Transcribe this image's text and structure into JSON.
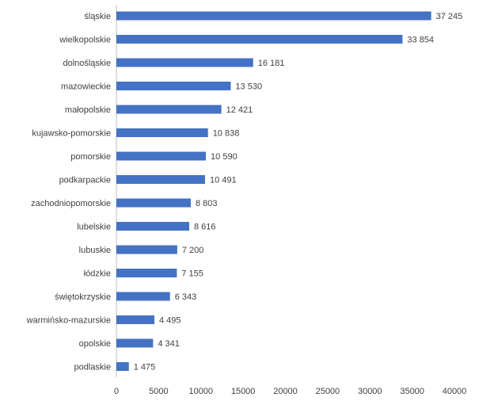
{
  "chart_data": {
    "type": "bar",
    "orientation": "horizontal",
    "title": "",
    "xlabel": "",
    "ylabel": "",
    "categories": [
      "śląskie",
      "wielkopolskie",
      "dolnośląskie",
      "mazowieckie",
      "małopolskie",
      "kujawsko-pomorskie",
      "pomorskie",
      "podkarpackie",
      "zachodniopomorskie",
      "lubelskie",
      "lubuskie",
      "łódzkie",
      "świętokrzyskie",
      "warmińsko-mazurskie",
      "opolskie",
      "podlaskie"
    ],
    "values": [
      37245,
      33854,
      16181,
      13530,
      12421,
      10838,
      10590,
      10491,
      8803,
      8616,
      7200,
      7155,
      6343,
      4495,
      4341,
      1475
    ],
    "value_labels": [
      "37 245",
      "33 854",
      "16 181",
      "13 530",
      "12 421",
      "10 838",
      "10 590",
      "10 491",
      "8 803",
      "8 616",
      "7 200",
      "7 155",
      "6 343",
      "4 495",
      "4 341",
      "1 475"
    ],
    "xlim": [
      0,
      40000
    ],
    "x_ticks": [
      0,
      5000,
      10000,
      15000,
      20000,
      25000,
      30000,
      35000,
      40000
    ],
    "x_tick_labels": [
      "0",
      "5000",
      "10000",
      "15000",
      "20000",
      "25000",
      "30000",
      "35000",
      "40000"
    ],
    "grid": false,
    "legend": "none",
    "colors": {
      "bar": "#4472c4",
      "text": "#404040",
      "axis": "#bfbfbf"
    }
  }
}
